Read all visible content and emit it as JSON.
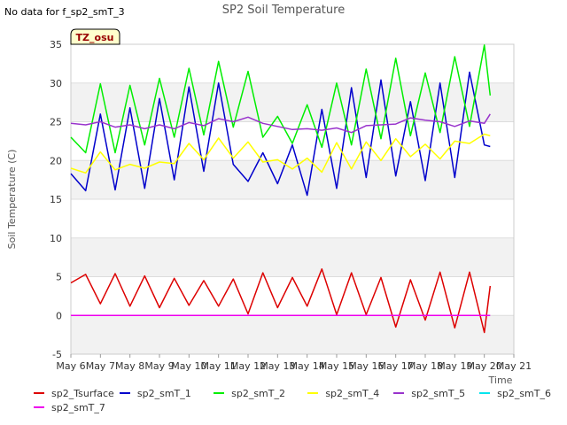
{
  "no_data_text": "No data for f_sp2_smT_3",
  "badge": "TZ_osu",
  "chart_data": {
    "type": "line",
    "title": "SP2 Soil Temperature",
    "xlabel": "Time",
    "ylabel": "Soil Temperature (C)",
    "ylim": [
      -5,
      35
    ],
    "yticks": [
      -5,
      0,
      5,
      10,
      15,
      20,
      25,
      30,
      35
    ],
    "xticks": [
      "May 6",
      "May 7",
      "May 8",
      "May 9",
      "May 10",
      "May 11",
      "May 12",
      "May 13",
      "May 14",
      "May 15",
      "May 16",
      "May 17",
      "May 18",
      "May 19",
      "May 20",
      "May 21"
    ],
    "grid": true,
    "legend_position": "bottom",
    "x_days": [
      6.0,
      6.5,
      7.0,
      7.5,
      8.0,
      8.5,
      9.0,
      9.5,
      10.0,
      10.5,
      11.0,
      11.5,
      12.0,
      12.5,
      13.0,
      13.5,
      14.0,
      14.5,
      15.0,
      15.5,
      16.0,
      16.5,
      17.0,
      17.5,
      18.0,
      18.5,
      19.0,
      19.5,
      20.0,
      20.2
    ],
    "series": [
      {
        "name": "sp2_Tsurface",
        "color": "#dd0000",
        "values": [
          4.2,
          5.3,
          1.5,
          5.4,
          1.2,
          5.1,
          1.0,
          4.8,
          1.3,
          4.5,
          1.2,
          4.7,
          0.2,
          5.5,
          1.0,
          4.9,
          1.2,
          6.0,
          0.1,
          5.5,
          0.1,
          4.9,
          -1.5,
          4.6,
          -0.6,
          5.6,
          -1.6,
          5.6,
          -2.2,
          3.8
        ]
      },
      {
        "name": "sp2_smT_1",
        "color": "#0000cc",
        "values": [
          18.3,
          16.1,
          26.0,
          16.2,
          26.8,
          16.4,
          28.0,
          17.5,
          29.5,
          18.6,
          30.0,
          19.5,
          17.3,
          21.0,
          17.0,
          22.0,
          15.5,
          26.6,
          16.4,
          29.4,
          17.8,
          30.4,
          18.0,
          27.6,
          17.4,
          30.0,
          17.8,
          31.4,
          22.0,
          21.8
        ]
      },
      {
        "name": "sp2_smT_2",
        "color": "#00ee00",
        "values": [
          23.0,
          21.0,
          29.9,
          21.0,
          29.7,
          22.0,
          30.6,
          23.0,
          31.9,
          23.3,
          32.8,
          24.3,
          31.5,
          23.0,
          25.7,
          22.2,
          27.2,
          21.7,
          30.0,
          22.0,
          31.8,
          22.8,
          33.2,
          23.2,
          31.3,
          23.6,
          33.4,
          24.4,
          34.9,
          28.4
        ]
      },
      {
        "name": "sp2_smT_4",
        "color": "#ffff00",
        "values": [
          19.0,
          18.4,
          21.1,
          18.8,
          19.5,
          19.0,
          19.8,
          19.6,
          22.2,
          20.1,
          22.9,
          20.3,
          22.4,
          19.8,
          20.1,
          18.9,
          20.3,
          18.5,
          22.3,
          18.9,
          22.4,
          20.0,
          22.8,
          20.5,
          22.1,
          20.2,
          22.5,
          22.2,
          23.4,
          23.2
        ]
      },
      {
        "name": "sp2_smT_5",
        "color": "#9933cc",
        "values": [
          24.8,
          24.6,
          25.0,
          24.3,
          24.6,
          24.1,
          24.6,
          24.1,
          24.9,
          24.5,
          25.4,
          25.0,
          25.6,
          24.8,
          24.4,
          24.0,
          24.1,
          23.9,
          24.2,
          23.6,
          24.5,
          24.6,
          24.7,
          25.5,
          25.2,
          25.0,
          24.4,
          25.1,
          24.8,
          26.0
        ]
      },
      {
        "name": "sp2_smT_6",
        "color": "#00e5ee",
        "values": []
      },
      {
        "name": "sp2_smT_7",
        "color": "#ee00ee",
        "values": [
          0.0,
          0.0,
          0.0,
          0.0,
          0.0,
          0.0,
          0.0,
          0.0,
          0.0,
          0.0,
          0.0,
          0.0,
          0.0,
          0.0,
          0.0,
          0.0,
          0.0,
          0.0,
          0.0,
          0.0,
          0.0,
          0.0,
          0.0,
          0.0,
          0.0,
          0.0,
          0.0,
          0.0,
          0.0,
          0.0
        ]
      }
    ]
  }
}
